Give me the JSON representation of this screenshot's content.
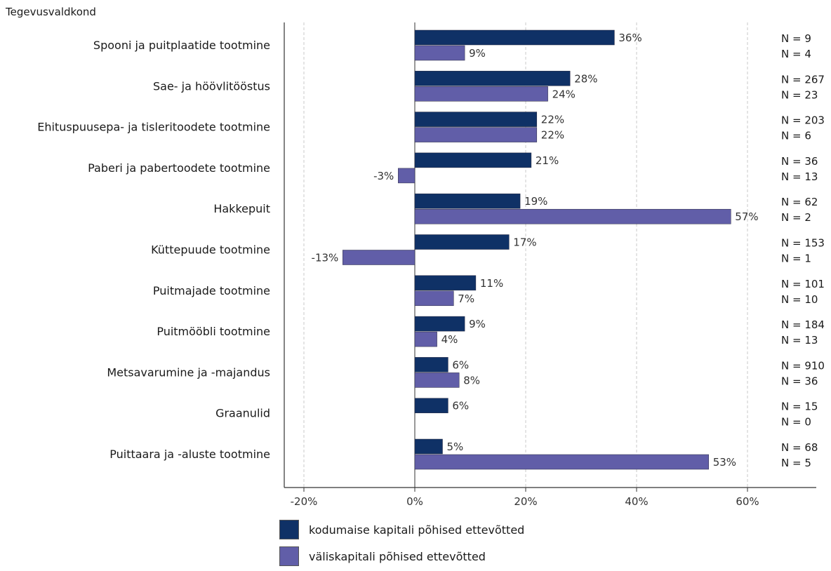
{
  "chart_data": {
    "type": "bar",
    "orientation": "horizontal",
    "title": "",
    "category_axis_title": "Tegevusvaldkond",
    "categories": [
      "Spooni ja puitplaatide tootmine",
      "Sae- ja höövlitööstus",
      "Ehituspuusepa- ja tisleritoodete tootmine",
      "Paberi ja pabertoodete tootmine",
      "Hakkepuit",
      "Küttepuude tootmine",
      "Puitmajade tootmine",
      "Puitmööbli tootmine",
      "Metsavarumine ja -majandus",
      "Graanulid",
      "Puittaara ja -aluste tootmine"
    ],
    "series": [
      {
        "name": "kodumaise kapitali põhised ettevõtted",
        "color": "#0f3166",
        "values": [
          36,
          28,
          22,
          21,
          19,
          17,
          11,
          9,
          6,
          6,
          5
        ],
        "value_labels": [
          "36%",
          "28%",
          "22%",
          "21%",
          "19%",
          "17%",
          "11%",
          "9%",
          "6%",
          "6%",
          "5%"
        ],
        "n_labels": [
          "N = 9",
          "N = 267",
          "N = 203",
          "N = 36",
          "N = 62",
          "N = 153",
          "N = 101",
          "N = 184",
          "N = 910",
          "N = 15",
          "N = 68"
        ]
      },
      {
        "name": "väliskapitali põhised ettevõtted",
        "color": "#615ea8",
        "values": [
          9,
          24,
          22,
          -3,
          57,
          -13,
          7,
          4,
          8,
          null,
          53
        ],
        "value_labels": [
          "9%",
          "24%",
          "22%",
          "-3%",
          "57%",
          "-13%",
          "7%",
          "4%",
          "8%",
          "",
          "53%"
        ],
        "n_labels": [
          "N = 4",
          "N = 23",
          "N = 6",
          "N = 13",
          "N = 2",
          "N = 1",
          "N = 10",
          "N = 13",
          "N = 36",
          "N = 0",
          "N = 5"
        ]
      }
    ],
    "xlim": [
      -20,
      60
    ],
    "xticks": [
      -20,
      0,
      20,
      40,
      60
    ],
    "xtick_labels": [
      "-20%",
      "0%",
      "20%",
      "40%",
      "60%"
    ],
    "grid": true,
    "legend_position": "bottom-left"
  }
}
